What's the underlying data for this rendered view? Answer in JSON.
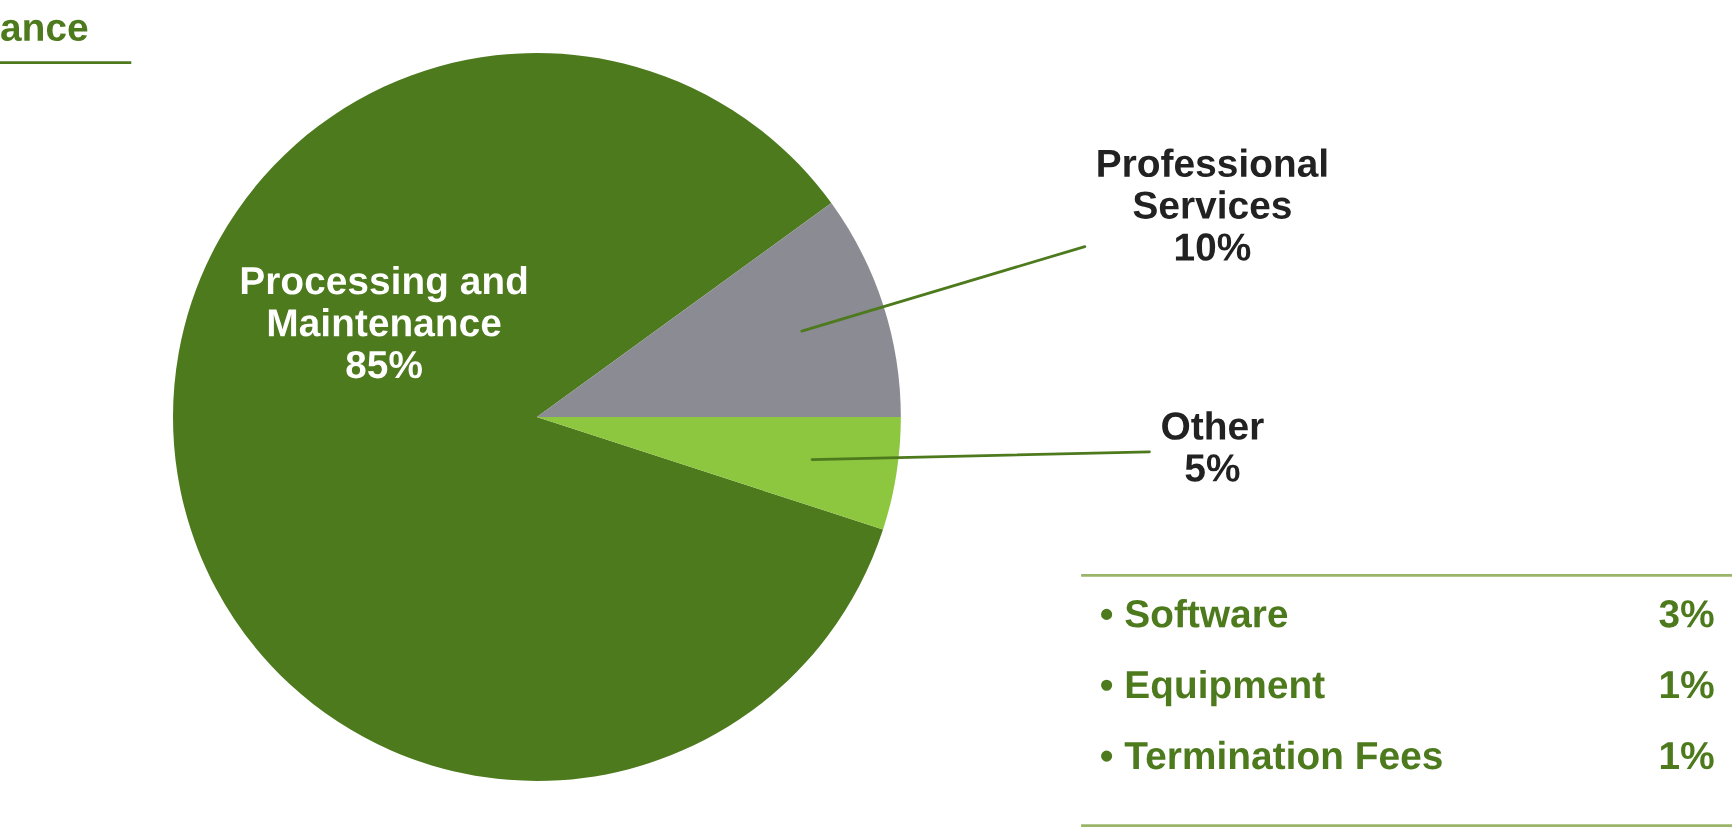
{
  "chart_data": {
    "type": "pie",
    "categories": [
      "Processing and\nMaintenance",
      "Professional\nServices",
      "Other"
    ],
    "values": [
      85,
      10,
      5
    ],
    "colors": [
      "#4e7a1e",
      "#8b8b93",
      "#8dc63f"
    ],
    "value_labels": [
      "85%",
      "10%",
      "5%"
    ],
    "annotations": [
      "ance",
      "• Software",
      "3%",
      "• Equipment",
      "1%",
      "• Termination Fees",
      "1%"
    ]
  }
}
